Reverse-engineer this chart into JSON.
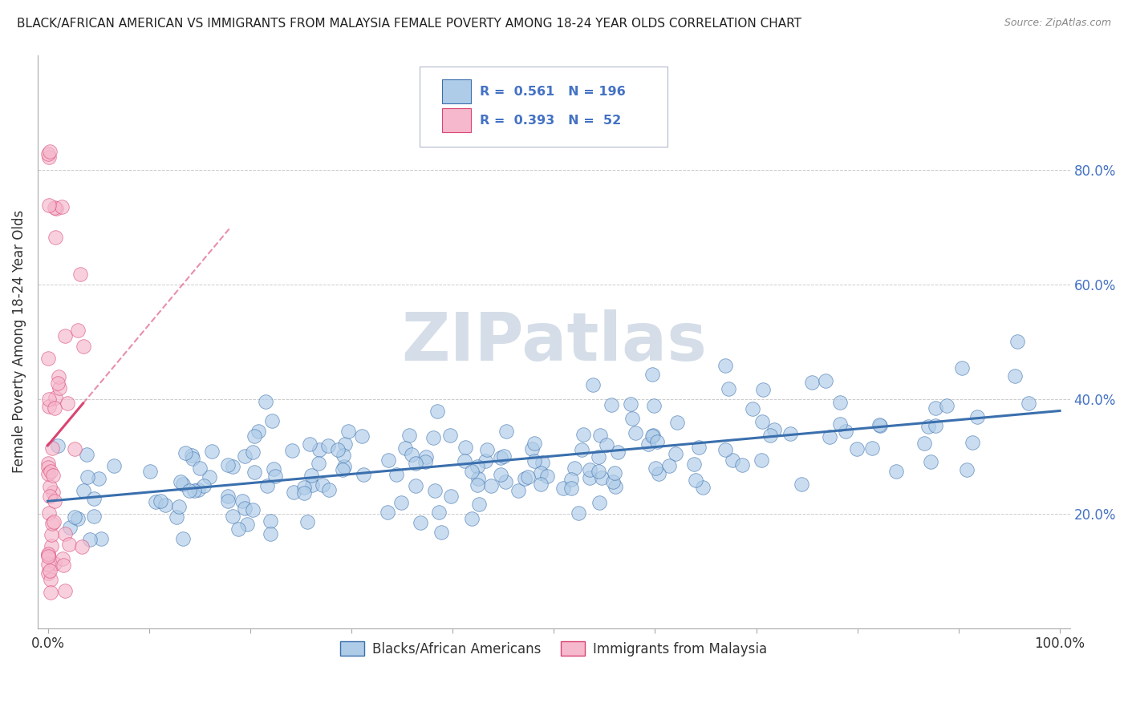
{
  "title": "BLACK/AFRICAN AMERICAN VS IMMIGRANTS FROM MALAYSIA FEMALE POVERTY AMONG 18-24 YEAR OLDS CORRELATION CHART",
  "source": "Source: ZipAtlas.com",
  "ylabel": "Female Poverty Among 18-24 Year Olds",
  "blue_R": 0.561,
  "blue_N": 196,
  "pink_R": 0.393,
  "pink_N": 52,
  "blue_label": "Blacks/African Americans",
  "pink_label": "Immigrants from Malaysia",
  "blue_color": "#aecce8",
  "blue_line_color": "#3a6fad",
  "pink_color": "#f5b8cc",
  "pink_line_color": "#d94472",
  "background_color": "#ffffff",
  "watermark_text": "ZIPatlas",
  "watermark_color": "#d5dde8",
  "ytick_labels": [
    "20.0%",
    "40.0%",
    "60.0%",
    "80.0%"
  ],
  "ytick_color": "#4472c4",
  "xtick_start": "0.0%",
  "xtick_end": "100.0%",
  "legend_text_color": "#4472c4",
  "title_fontsize": 11,
  "source_fontsize": 9,
  "grid_color": "#cccccc"
}
